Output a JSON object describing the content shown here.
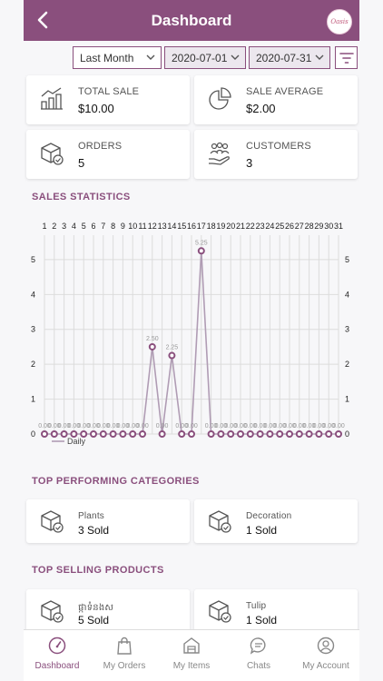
{
  "header": {
    "title": "Dashboard",
    "logo_text": "Oasis"
  },
  "filters": {
    "period": "Last Month",
    "start_date": "2020-07-01",
    "end_date": "2020-07-31"
  },
  "stats": [
    {
      "label": "TOTAL SALE",
      "value": "$10.00",
      "icon": "bar-chart-icon"
    },
    {
      "label": "SALE AVERAGE",
      "value": "$2.00",
      "icon": "pie-chart-icon"
    },
    {
      "label": "ORDERS",
      "value": "5",
      "icon": "box-icon"
    },
    {
      "label": "CUSTOMERS",
      "value": "3",
      "icon": "customers-hand-icon"
    }
  ],
  "sections": {
    "sales_statistics": "SALES STATISTICS",
    "top_categories": "TOP PERFORMING CATEGORIES",
    "top_products": "TOP SELLING PRODUCTS"
  },
  "categories": [
    {
      "name": "Plants",
      "sold": "3 Sold"
    },
    {
      "name": "Decoration",
      "sold": "1 Sold"
    }
  ],
  "products": [
    {
      "name": "ផ្កាទំនងស",
      "sold": "5 Sold"
    },
    {
      "name": "Tulip",
      "sold": "1 Sold"
    }
  ],
  "nav": [
    {
      "label": "Dashboard",
      "icon": "gauge-icon",
      "active": true
    },
    {
      "label": "My Orders",
      "icon": "shopping-bag-icon",
      "active": false
    },
    {
      "label": "My Items",
      "icon": "store-icon",
      "active": false
    },
    {
      "label": "Chats",
      "icon": "chat-icon",
      "active": false
    },
    {
      "label": "My Account",
      "icon": "user-icon",
      "active": false
    }
  ],
  "chart_data": {
    "type": "line",
    "title": "",
    "xlabel": "",
    "ylabel": "",
    "categories": [
      "1",
      "2",
      "3",
      "4",
      "5",
      "6",
      "7",
      "8",
      "9",
      "10",
      "11",
      "12",
      "13",
      "14",
      "15",
      "16",
      "17",
      "18",
      "19",
      "20",
      "21",
      "22",
      "23",
      "24",
      "25",
      "26",
      "27",
      "28",
      "29",
      "30",
      "31"
    ],
    "series": [
      {
        "name": "Daily",
        "values": [
          0,
          0,
          0,
          0,
          0,
          0,
          0,
          0,
          0,
          0,
          0,
          2.5,
          0,
          2.25,
          0,
          0,
          5.25,
          0,
          0,
          0,
          0,
          0,
          0,
          0,
          0,
          0,
          0,
          0,
          0,
          0,
          0
        ]
      }
    ],
    "data_labels": [
      "0.00",
      "0.00",
      "0.00",
      "0.00",
      "0.00",
      "0.00",
      "0.00",
      "0.00",
      "0.00",
      "0.00",
      "0.00",
      "2.50",
      "0.00",
      "2.25",
      "0.00",
      "0.00",
      "5.25",
      "0.00",
      "0.00",
      "0.00",
      "0.00",
      "0.00",
      "0.00",
      "0.00",
      "0.00",
      "0.00",
      "0.00",
      "0.00",
      "0.00",
      "0.00",
      "0.00"
    ],
    "y_ticks": [
      "0",
      "1",
      "2",
      "3",
      "4",
      "5"
    ],
    "ylim": [
      0,
      5.7
    ],
    "grid": true,
    "legend": "bottom-left",
    "line_color": "#b09cb4",
    "point_color": "#8a4f7d"
  },
  "colors": {
    "brand": "#8a4f7d"
  }
}
